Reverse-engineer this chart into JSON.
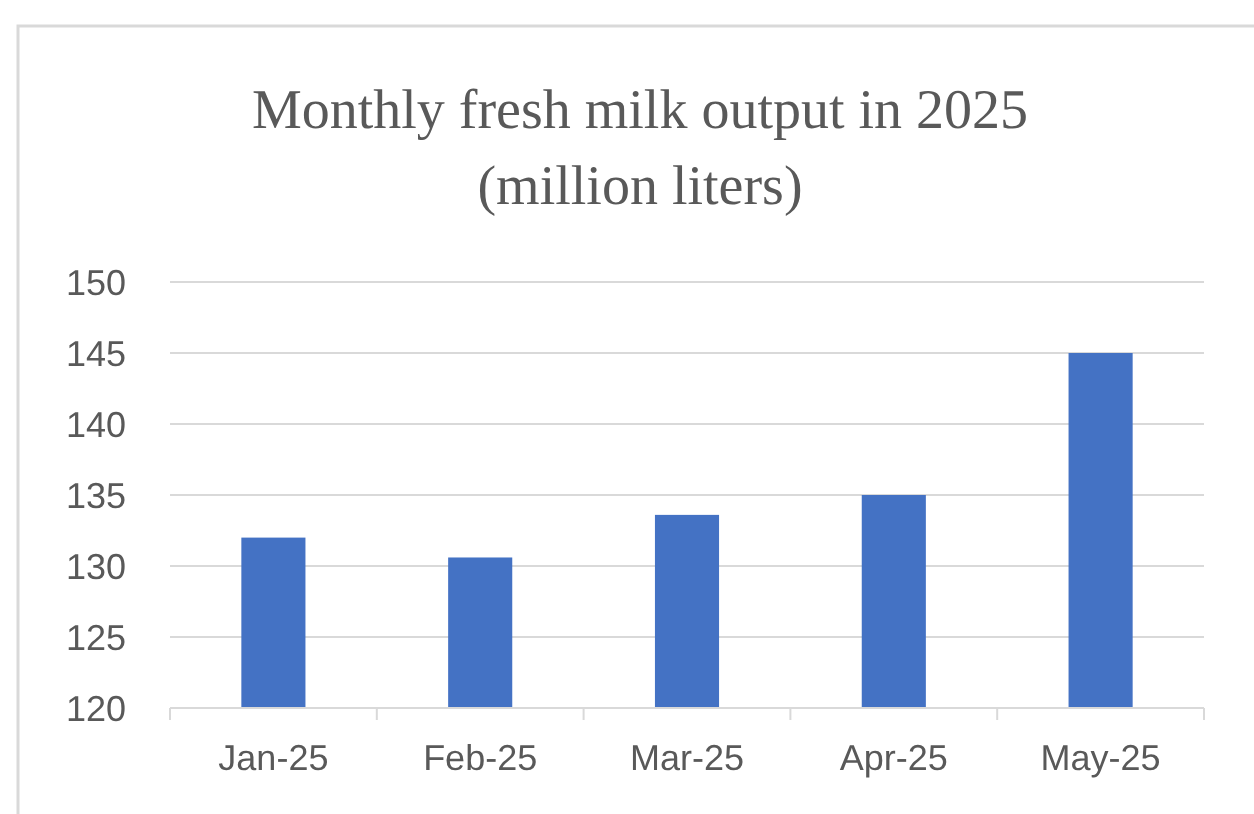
{
  "chart_data": {
    "type": "bar",
    "title": "Monthly fresh milk output in 2025\n(million liters)",
    "categories": [
      "Jan-25",
      "Feb-25",
      "Mar-25",
      "Apr-25",
      "May-25"
    ],
    "values": [
      132,
      130.6,
      133.6,
      135,
      145
    ],
    "color": "#4472c4",
    "ylim": [
      120,
      150
    ],
    "yticks": [
      120,
      125,
      130,
      135,
      140,
      145,
      150
    ],
    "grid": "y"
  }
}
